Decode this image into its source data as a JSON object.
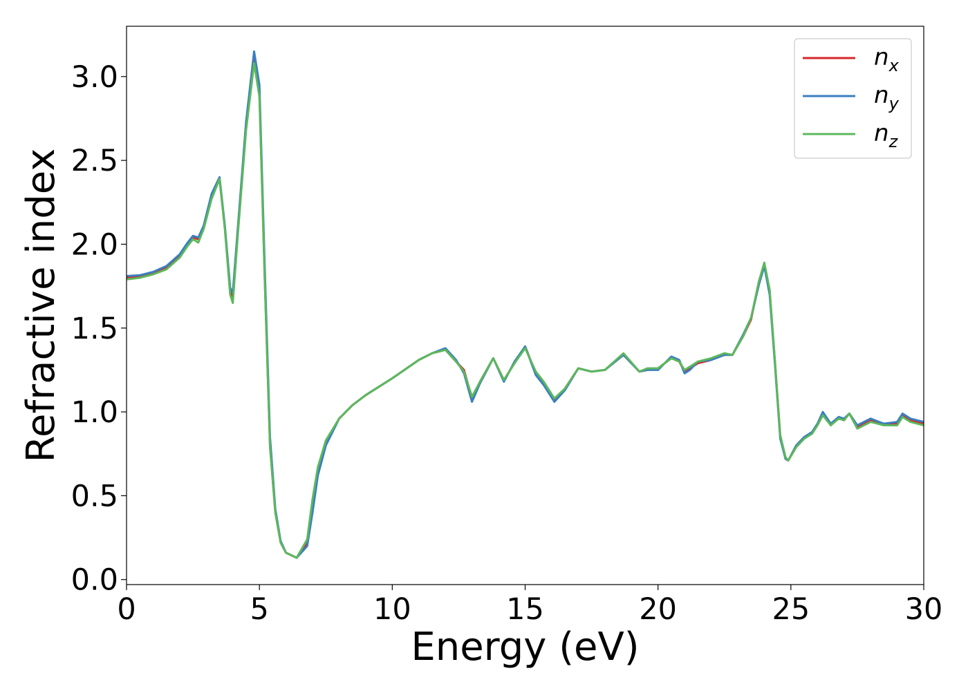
{
  "chart_data": {
    "type": "line",
    "title": "",
    "xlabel": "Energy (eV)",
    "ylabel": "Refractive index",
    "xlim": [
      0,
      30
    ],
    "ylim": [
      -0.03,
      3.3
    ],
    "x_ticks": [
      0,
      5,
      10,
      15,
      20,
      25,
      30
    ],
    "x_tick_labels": [
      "0",
      "5",
      "10",
      "15",
      "20",
      "25",
      "30"
    ],
    "y_ticks": [
      0.0,
      0.5,
      1.0,
      1.5,
      2.0,
      2.5,
      3.0
    ],
    "y_tick_labels": [
      "0.0",
      "0.5",
      "1.0",
      "1.5",
      "2.0",
      "2.5",
      "3.0"
    ],
    "grid": false,
    "legend_position": "top-right",
    "x": [
      0,
      0.5,
      1.0,
      1.5,
      2.0,
      2.3,
      2.5,
      2.7,
      2.9,
      3.2,
      3.5,
      3.7,
      3.9,
      4.0,
      4.2,
      4.5,
      4.8,
      5.0,
      5.2,
      5.4,
      5.6,
      5.8,
      6.0,
      6.4,
      6.8,
      7.0,
      7.2,
      7.5,
      8.0,
      8.5,
      9.0,
      10.0,
      11.0,
      11.5,
      12.0,
      12.4,
      12.7,
      13.0,
      13.3,
      13.8,
      14.2,
      14.6,
      15.0,
      15.4,
      15.7,
      16.1,
      16.5,
      17.0,
      17.5,
      18.0,
      18.7,
      19.3,
      19.6,
      20.0,
      20.5,
      20.8,
      21.0,
      21.2,
      21.5,
      22.0,
      22.5,
      22.8,
      23.2,
      23.5,
      23.8,
      24.0,
      24.2,
      24.4,
      24.6,
      24.8,
      24.9,
      25.2,
      25.5,
      25.8,
      26.0,
      26.2,
      26.5,
      26.8,
      27.0,
      27.2,
      27.5,
      28.0,
      28.5,
      29.0,
      29.2,
      29.5,
      30.0
    ],
    "series": [
      {
        "name": "n_x",
        "legend_main": "n",
        "legend_sub": "x",
        "color": "#d62728",
        "y": [
          1.8,
          1.81,
          1.83,
          1.86,
          1.93,
          2.0,
          2.04,
          2.03,
          2.1,
          2.28,
          2.39,
          2.1,
          1.72,
          1.69,
          2.1,
          2.7,
          3.1,
          2.9,
          1.8,
          0.8,
          0.4,
          0.22,
          0.16,
          0.13,
          0.22,
          0.45,
          0.65,
          0.82,
          0.96,
          1.04,
          1.1,
          1.2,
          1.31,
          1.35,
          1.37,
          1.3,
          1.25,
          1.08,
          1.18,
          1.32,
          1.19,
          1.29,
          1.39,
          1.23,
          1.17,
          1.07,
          1.14,
          1.26,
          1.24,
          1.25,
          1.34,
          1.24,
          1.25,
          1.26,
          1.32,
          1.3,
          1.24,
          1.26,
          1.29,
          1.31,
          1.34,
          1.34,
          1.45,
          1.55,
          1.78,
          1.88,
          1.72,
          1.3,
          0.85,
          0.72,
          0.71,
          0.79,
          0.84,
          0.88,
          0.92,
          0.99,
          0.92,
          0.97,
          0.95,
          0.99,
          0.91,
          0.95,
          0.92,
          0.93,
          0.98,
          0.95,
          0.93
        ]
      },
      {
        "name": "n_y",
        "legend_main": "n",
        "legend_sub": "y",
        "color": "#3a7fc1",
        "y": [
          1.81,
          1.815,
          1.835,
          1.87,
          1.94,
          2.01,
          2.05,
          2.04,
          2.11,
          2.3,
          2.4,
          2.11,
          1.74,
          1.71,
          2.12,
          2.73,
          3.15,
          2.95,
          1.86,
          0.85,
          0.42,
          0.23,
          0.16,
          0.13,
          0.2,
          0.4,
          0.62,
          0.8,
          0.96,
          1.04,
          1.1,
          1.2,
          1.31,
          1.35,
          1.38,
          1.31,
          1.23,
          1.06,
          1.17,
          1.32,
          1.18,
          1.3,
          1.39,
          1.22,
          1.16,
          1.06,
          1.13,
          1.26,
          1.24,
          1.25,
          1.34,
          1.24,
          1.25,
          1.25,
          1.33,
          1.31,
          1.23,
          1.25,
          1.3,
          1.31,
          1.34,
          1.34,
          1.46,
          1.56,
          1.76,
          1.87,
          1.7,
          1.28,
          0.84,
          0.72,
          0.71,
          0.8,
          0.85,
          0.88,
          0.93,
          1.0,
          0.93,
          0.97,
          0.96,
          0.99,
          0.92,
          0.96,
          0.93,
          0.94,
          0.99,
          0.96,
          0.94
        ]
      },
      {
        "name": "n_z",
        "legend_main": "n",
        "legend_sub": "z",
        "color": "#5cb85c",
        "y": [
          1.79,
          1.8,
          1.82,
          1.85,
          1.92,
          1.99,
          2.03,
          2.01,
          2.09,
          2.27,
          2.39,
          2.09,
          1.7,
          1.65,
          2.08,
          2.68,
          3.08,
          2.88,
          1.78,
          0.79,
          0.4,
          0.22,
          0.16,
          0.13,
          0.24,
          0.48,
          0.67,
          0.83,
          0.96,
          1.04,
          1.1,
          1.2,
          1.31,
          1.35,
          1.37,
          1.3,
          1.24,
          1.09,
          1.18,
          1.32,
          1.19,
          1.29,
          1.38,
          1.24,
          1.18,
          1.08,
          1.14,
          1.26,
          1.24,
          1.25,
          1.35,
          1.24,
          1.26,
          1.26,
          1.32,
          1.3,
          1.25,
          1.27,
          1.3,
          1.32,
          1.35,
          1.34,
          1.45,
          1.56,
          1.78,
          1.89,
          1.73,
          1.3,
          0.86,
          0.73,
          0.71,
          0.79,
          0.84,
          0.87,
          0.92,
          0.98,
          0.92,
          0.96,
          0.95,
          0.99,
          0.9,
          0.94,
          0.92,
          0.92,
          0.97,
          0.94,
          0.92
        ]
      }
    ]
  }
}
